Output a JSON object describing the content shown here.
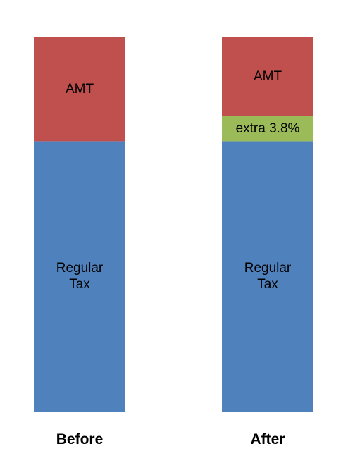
{
  "chart_data": {
    "type": "bar",
    "stacked": true,
    "categories": [
      "Before",
      "After"
    ],
    "series": [
      {
        "key": "regular",
        "label_lines": [
          "Regular",
          "Tax"
        ],
        "color": "#4f81bd",
        "values": [
          70,
          70
        ]
      },
      {
        "key": "extra",
        "label_lines": [
          "extra 3.8%"
        ],
        "color": "#9bbb59",
        "values": [
          0,
          6.5
        ]
      },
      {
        "key": "amt",
        "label_lines": [
          "AMT"
        ],
        "color": "#c0504d",
        "values": [
          27,
          20.5
        ]
      }
    ],
    "ylim": [
      0,
      100
    ],
    "grid": false,
    "legend": "none",
    "axis_color": "#a0a0a0"
  }
}
